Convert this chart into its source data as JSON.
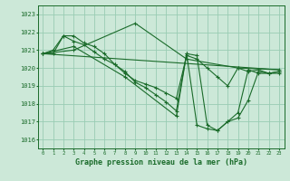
{
  "background_color": "#cce8d8",
  "grid_color": "#99ccb3",
  "line_color": "#1a6b2a",
  "xlabel": "Graphe pression niveau de la mer (hPa)",
  "ylim": [
    1015.5,
    1023.5
  ],
  "xlim": [
    -0.5,
    23.5
  ],
  "yticks": [
    1016,
    1017,
    1018,
    1019,
    1020,
    1021,
    1022,
    1023
  ],
  "xticks": [
    0,
    1,
    2,
    3,
    4,
    5,
    6,
    7,
    8,
    9,
    10,
    11,
    12,
    13,
    14,
    15,
    16,
    17,
    18,
    19,
    20,
    21,
    22,
    23
  ],
  "series1_x": [
    0,
    1,
    2,
    3,
    4,
    5,
    6,
    7,
    8,
    9,
    10,
    11,
    12,
    13,
    14,
    15,
    16,
    17,
    18,
    19,
    20,
    21,
    22,
    23
  ],
  "series1_y": [
    1020.8,
    1020.8,
    1021.8,
    1021.8,
    1021.4,
    1021.2,
    1020.8,
    1020.2,
    1019.7,
    1019.3,
    1019.1,
    1018.9,
    1018.6,
    1018.3,
    1020.7,
    1020.5,
    1020.0,
    1019.5,
    1019.0,
    1020.0,
    1019.8,
    1019.9,
    1019.7,
    1019.8
  ],
  "series2_x": [
    0,
    1,
    2,
    3,
    4,
    5,
    6,
    7,
    8,
    9,
    10,
    11,
    12,
    13,
    14,
    15,
    16,
    17,
    18,
    19,
    20,
    21,
    22,
    23
  ],
  "series2_y": [
    1020.8,
    1021.0,
    1021.8,
    1021.5,
    1021.3,
    1020.9,
    1020.5,
    1020.2,
    1019.8,
    1019.2,
    1018.9,
    1018.5,
    1018.1,
    1017.6,
    1020.8,
    1016.8,
    1016.6,
    1016.5,
    1017.0,
    1017.5,
    1019.9,
    1019.7,
    1019.7,
    1019.7
  ],
  "series3_x": [
    0,
    23
  ],
  "series3_y": [
    1020.8,
    1019.9
  ],
  "series4_x": [
    0,
    3,
    9,
    14,
    19,
    23
  ],
  "series4_y": [
    1020.8,
    1021.0,
    1022.5,
    1020.5,
    1020.0,
    1019.9
  ],
  "series5_x": [
    0,
    3,
    8,
    13,
    14,
    15,
    16,
    17,
    18,
    19,
    20,
    21,
    22,
    23
  ],
  "series5_y": [
    1020.8,
    1021.2,
    1019.5,
    1017.3,
    1020.8,
    1020.7,
    1016.8,
    1016.5,
    1017.0,
    1017.2,
    1018.2,
    1019.8,
    1019.7,
    1019.8
  ]
}
